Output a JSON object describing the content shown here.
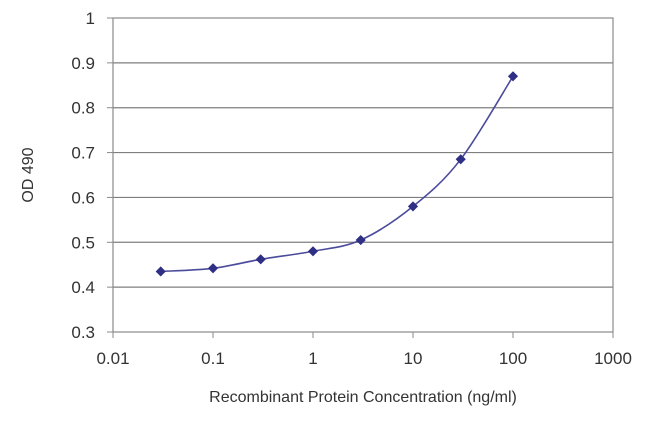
{
  "chart_data": {
    "type": "line",
    "title": "",
    "xlabel": "Recombinant Protein Concentration (ng/ml)",
    "ylabel": "OD 490",
    "x_scale": "log",
    "xlim": [
      0.01,
      1000
    ],
    "ylim": [
      0.3,
      1
    ],
    "x_ticks": [
      "0.01",
      "0.1",
      "1",
      "10",
      "100",
      "1000"
    ],
    "y_ticks": [
      "0.3",
      "0.4",
      "0.5",
      "0.6",
      "0.7",
      "0.8",
      "0.9",
      "1"
    ],
    "grid": "horizontal",
    "series": [
      {
        "x": [
          0.03,
          0.1,
          0.3,
          1,
          3,
          10,
          30,
          100
        ],
        "y": [
          0.435,
          0.442,
          0.462,
          0.48,
          0.505,
          0.58,
          0.685,
          0.87
        ],
        "color": "#4b4b9c",
        "marker": "diamond"
      }
    ]
  }
}
